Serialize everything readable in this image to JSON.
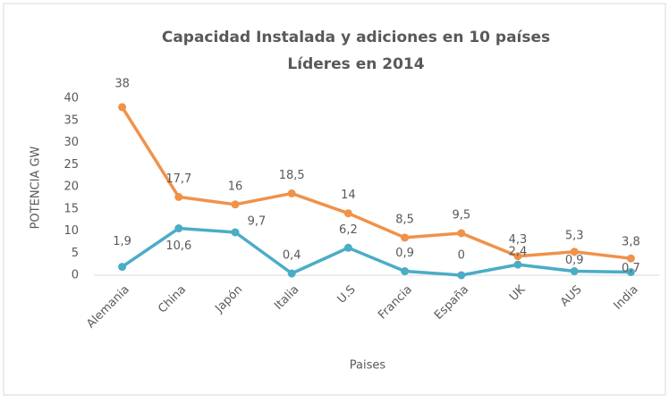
{
  "chart_data": {
    "type": "line",
    "title": [
      "Capacidad Instalada y adiciones en 10 países",
      "Líderes en 2014"
    ],
    "x_label": "Paises",
    "y_label": "POTENCIA GW",
    "categories": [
      "Alemania",
      "China",
      "Japón",
      "Italia",
      "U.S",
      "Francia",
      "España",
      "UK",
      "AUS",
      "India"
    ],
    "series": [
      {
        "color": "#f0924a",
        "values": [
          38,
          17.7,
          16,
          18.5,
          14,
          8.5,
          9.5,
          4.3,
          5.3,
          3.8
        ],
        "value_labels": [
          "38",
          "17,7",
          "16",
          "18,5",
          "14",
          "8,5",
          "9,5",
          "4,3",
          "5,3",
          "3,8"
        ]
      },
      {
        "color": "#4bacc6",
        "values": [
          1.9,
          10.6,
          9.7,
          0.4,
          6.2,
          0.9,
          0,
          2.4,
          0.9,
          0.7
        ],
        "value_labels": [
          "1,9",
          "10,6",
          "9,7",
          "0,4",
          "6,2",
          "0,9",
          "0",
          "2,4",
          "0,9",
          "0,7"
        ]
      }
    ],
    "ylim": [
      0,
      40
    ],
    "yticks": [
      0,
      5,
      10,
      15,
      20,
      25,
      30,
      35,
      40
    ],
    "grid": false
  }
}
